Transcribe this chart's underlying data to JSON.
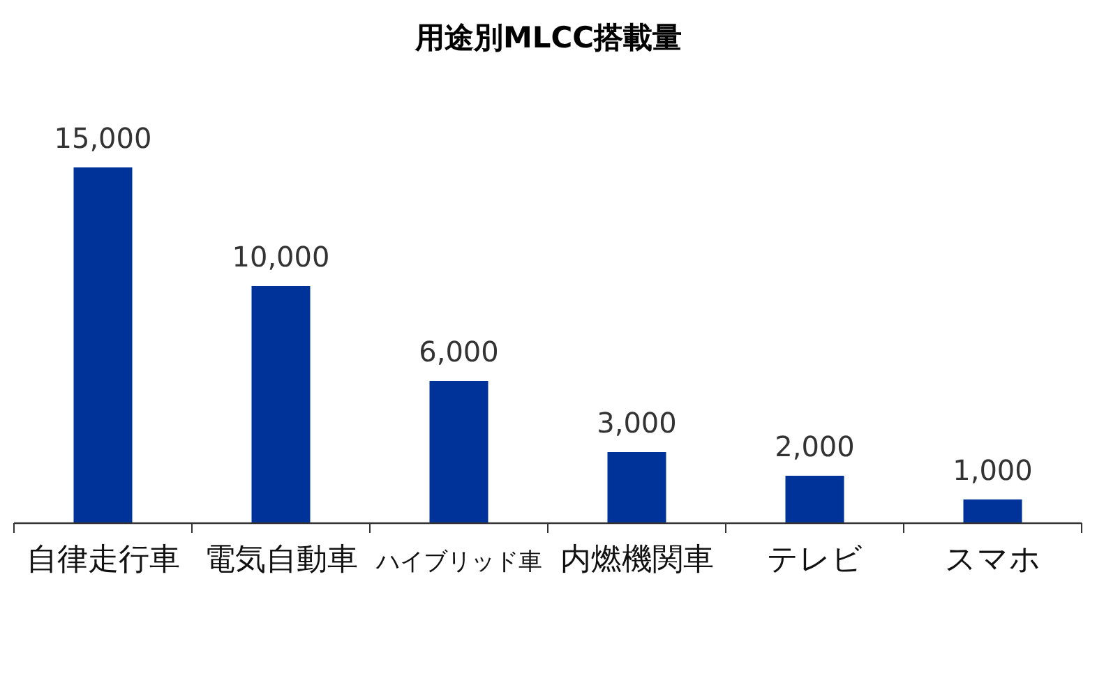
{
  "chart_data": {
    "type": "bar",
    "title": "用途別MLCC搭載量",
    "categories": [
      "自律走行車",
      "電気自動車",
      "ハイブリッド車",
      "内燃機関車",
      "テレビ",
      "スマホ"
    ],
    "values": [
      15000,
      10000,
      6000,
      3000,
      2000,
      1000
    ],
    "value_labels": [
      "15,000",
      "10,000",
      "6,000",
      "3,000",
      "2,000",
      "1,000"
    ],
    "color": "#003399"
  }
}
